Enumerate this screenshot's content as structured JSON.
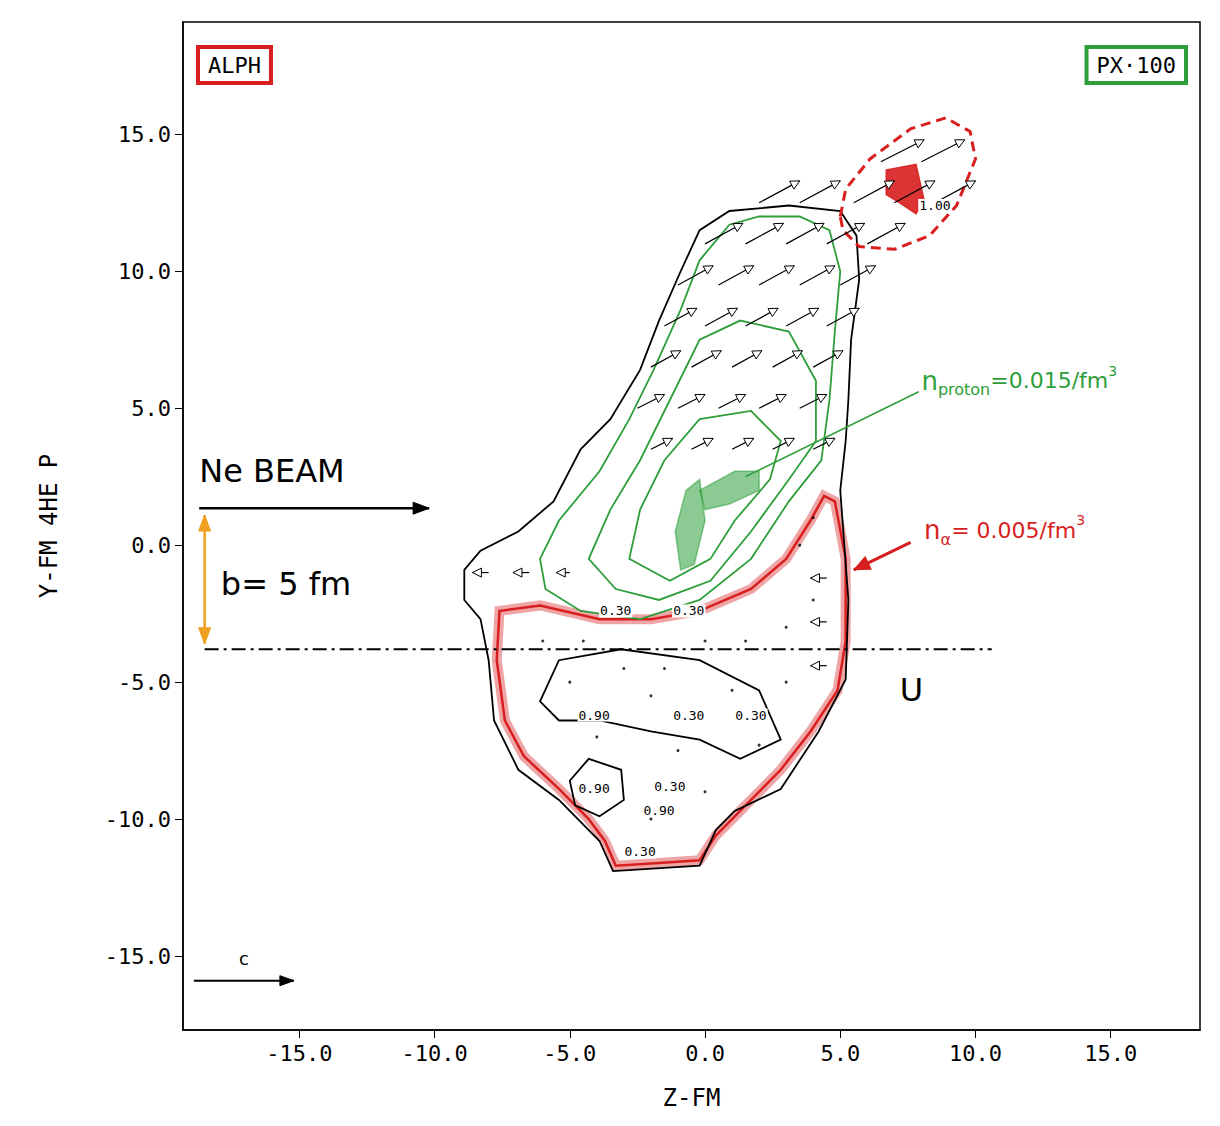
{
  "chart_data": {
    "type": "contour",
    "xlabel": "Z-FM",
    "ylabel": "Y-FM 4HE P",
    "xlim": [
      -19.3,
      18.3
    ],
    "ylim": [
      -17.7,
      19.1
    ],
    "xticks": [
      {
        "value": -15,
        "label": "-15.0"
      },
      {
        "value": -10,
        "label": "-10.0"
      },
      {
        "value": -5,
        "label": "-5.0"
      },
      {
        "value": 0,
        "label": "0.0"
      },
      {
        "value": 5,
        "label": "5.0"
      },
      {
        "value": 10,
        "label": "10.0"
      },
      {
        "value": 15,
        "label": "15.0"
      }
    ],
    "yticks": [
      {
        "value": -15,
        "label": "-15.0"
      },
      {
        "value": -10,
        "label": "-10.0"
      },
      {
        "value": -5,
        "label": "-5.0"
      },
      {
        "value": 0,
        "label": "0.0"
      },
      {
        "value": 5,
        "label": "5.0"
      },
      {
        "value": 10,
        "label": "10.0"
      },
      {
        "value": 15,
        "label": "15.0"
      }
    ],
    "grid": false,
    "boxes": [
      {
        "text": "ALPH",
        "color": "#d81e1e"
      },
      {
        "text": "PX·100",
        "color": "#2e9e3a"
      }
    ],
    "series": [
      {
        "type": "line",
        "color": "#d81e1e",
        "line_style": "hatched",
        "values": [
          [
            -7.6,
            -2.4
          ],
          [
            -6.1,
            -2.2
          ],
          [
            -3.9,
            -2.7
          ],
          [
            -2.0,
            -2.7
          ],
          [
            -0.2,
            -2.4
          ],
          [
            1.7,
            -1.6
          ],
          [
            3.0,
            -0.5
          ],
          [
            3.9,
            0.9
          ],
          [
            4.4,
            1.8
          ],
          [
            4.8,
            1.6
          ],
          [
            5.2,
            -0.5
          ],
          [
            5.2,
            -3.5
          ],
          [
            4.9,
            -5.3
          ],
          [
            3.9,
            -6.8
          ],
          [
            2.8,
            -8.2
          ],
          [
            1.3,
            -9.7
          ],
          [
            0.4,
            -10.6
          ],
          [
            -0.2,
            -11.5
          ],
          [
            -1.7,
            -11.6
          ],
          [
            -3.3,
            -11.7
          ],
          [
            -3.7,
            -10.8
          ],
          [
            -4.3,
            -10.0
          ],
          [
            -5.4,
            -8.9
          ],
          [
            -6.7,
            -7.7
          ],
          [
            -7.4,
            -6.4
          ],
          [
            -7.7,
            -4.2
          ]
        ]
      },
      {
        "type": "line",
        "color": "#000000",
        "line_style": "solid",
        "values": [
          [
            -8.9,
            -0.9
          ],
          [
            -8.3,
            -0.2
          ],
          [
            -6.9,
            0.5
          ],
          [
            -5.6,
            1.6
          ],
          [
            -4.6,
            3.5
          ],
          [
            -3.5,
            4.6
          ],
          [
            -2.4,
            6.4
          ],
          [
            -1.7,
            8.2
          ],
          [
            -0.9,
            10.0
          ],
          [
            -0.2,
            11.5
          ],
          [
            0.9,
            12.2
          ],
          [
            3.1,
            12.4
          ],
          [
            5.0,
            12.2
          ],
          [
            5.6,
            11.3
          ],
          [
            5.7,
            9.7
          ],
          [
            5.4,
            7.5
          ],
          [
            5.3,
            5.3
          ],
          [
            5.2,
            3.8
          ],
          [
            5.0,
            2.0
          ],
          [
            5.3,
            -2.0
          ],
          [
            5.2,
            -4.9
          ],
          [
            4.2,
            -6.8
          ],
          [
            2.8,
            -8.9
          ],
          [
            1.1,
            -9.7
          ],
          [
            0.4,
            -10.4
          ],
          [
            -0.2,
            -11.7
          ],
          [
            -3.4,
            -11.9
          ],
          [
            -3.9,
            -10.8
          ],
          [
            -5.4,
            -9.3
          ],
          [
            -6.9,
            -8.2
          ],
          [
            -7.8,
            -6.4
          ],
          [
            -8.0,
            -4.2
          ],
          [
            -8.3,
            -2.7
          ],
          [
            -8.9,
            -2.0
          ]
        ]
      },
      {
        "type": "line",
        "color": "#d81e1e",
        "line_style": "dashed",
        "values": [
          [
            5.0,
            12.0
          ],
          [
            5.2,
            13.0
          ],
          [
            6.1,
            14.1
          ],
          [
            7.6,
            15.2
          ],
          [
            8.9,
            15.6
          ],
          [
            9.8,
            15.1
          ],
          [
            10.0,
            14.1
          ],
          [
            9.3,
            12.4
          ],
          [
            8.3,
            11.3
          ],
          [
            7.0,
            10.8
          ],
          [
            5.7,
            10.9
          ],
          [
            5.1,
            11.5
          ]
        ]
      },
      {
        "type": "area",
        "color": "#d81e1e",
        "line_style": "solid",
        "values": [
          [
            6.7,
            13.7
          ],
          [
            7.8,
            13.9
          ],
          [
            8.1,
            12.6
          ],
          [
            7.8,
            12.1
          ],
          [
            7.2,
            12.5
          ],
          [
            6.7,
            12.8
          ]
        ]
      },
      {
        "type": "line",
        "color": "#2e9e3a",
        "line_style": "solid",
        "values": [
          [
            -6.1,
            -0.5
          ],
          [
            -5.4,
            0.9
          ],
          [
            -3.9,
            2.7
          ],
          [
            -2.8,
            4.6
          ],
          [
            -1.9,
            6.4
          ],
          [
            -0.9,
            8.6
          ],
          [
            -0.2,
            10.4
          ],
          [
            0.9,
            11.7
          ],
          [
            2.0,
            12.0
          ],
          [
            3.5,
            12.0
          ],
          [
            4.6,
            11.5
          ],
          [
            5.0,
            10.0
          ],
          [
            4.8,
            7.8
          ],
          [
            4.6,
            5.3
          ],
          [
            4.3,
            3.1
          ],
          [
            3.1,
            1.6
          ],
          [
            1.7,
            -0.5
          ],
          [
            -0.2,
            -2.0
          ],
          [
            -2.4,
            -2.7
          ],
          [
            -4.6,
            -2.4
          ],
          [
            -5.9,
            -1.6
          ]
        ]
      },
      {
        "type": "line",
        "color": "#2e9e3a",
        "line_style": "solid",
        "values": [
          [
            -4.3,
            -0.5
          ],
          [
            -3.5,
            1.3
          ],
          [
            -2.4,
            3.1
          ],
          [
            -1.3,
            5.3
          ],
          [
            -0.2,
            7.5
          ],
          [
            1.3,
            8.2
          ],
          [
            3.1,
            7.8
          ],
          [
            4.1,
            6.0
          ],
          [
            4.1,
            3.8
          ],
          [
            3.1,
            2.4
          ],
          [
            1.7,
            0.5
          ],
          [
            0.2,
            -1.3
          ],
          [
            -1.7,
            -2.0
          ],
          [
            -3.3,
            -1.6
          ]
        ]
      },
      {
        "type": "line",
        "color": "#2e9e3a",
        "line_style": "solid",
        "values": [
          [
            -2.8,
            -0.5
          ],
          [
            -2.4,
            1.3
          ],
          [
            -1.5,
            3.1
          ],
          [
            -0.2,
            4.6
          ],
          [
            1.7,
            4.9
          ],
          [
            2.8,
            3.8
          ],
          [
            2.4,
            2.4
          ],
          [
            1.1,
            0.9
          ],
          [
            0.2,
            -0.5
          ],
          [
            -1.3,
            -1.3
          ]
        ]
      },
      {
        "type": "area",
        "color": "#2e9e3a",
        "line_style": "hatched",
        "values": [
          [
            -0.2,
            2.0
          ],
          [
            1.1,
            2.7
          ],
          [
            2.0,
            2.7
          ],
          [
            2.0,
            2.0
          ],
          [
            0.9,
            1.5
          ],
          [
            0.0,
            1.3
          ]
        ]
      },
      {
        "type": "area",
        "color": "#2e9e3a",
        "line_style": "hatched",
        "values": [
          [
            -0.9,
            -0.9
          ],
          [
            -1.1,
            0.5
          ],
          [
            -0.7,
            2.0
          ],
          [
            -0.2,
            2.4
          ],
          [
            0.0,
            0.9
          ],
          [
            -0.4,
            -0.7
          ]
        ]
      },
      {
        "type": "line",
        "color": "#000000",
        "line_style": "solid",
        "values": [
          [
            -6.1,
            -5.7
          ],
          [
            -5.4,
            -4.2
          ],
          [
            -3.1,
            -3.8
          ],
          [
            -0.2,
            -4.2
          ],
          [
            2.0,
            -5.3
          ],
          [
            2.8,
            -7.1
          ],
          [
            1.3,
            -7.8
          ],
          [
            -0.2,
            -7.1
          ],
          [
            -2.0,
            -6.8
          ],
          [
            -3.9,
            -6.4
          ],
          [
            -5.4,
            -6.4
          ]
        ]
      },
      {
        "type": "line",
        "color": "#000000",
        "line_style": "solid",
        "values": [
          [
            -5.0,
            -8.6
          ],
          [
            -4.3,
            -7.8
          ],
          [
            -3.1,
            -8.2
          ],
          [
            -3.0,
            -9.3
          ],
          [
            -3.9,
            -9.9
          ],
          [
            -4.8,
            -9.5
          ]
        ]
      }
    ],
    "arrows": [
      [
        -2,
        3.5,
        0.8,
        0.4
      ],
      [
        -0.5,
        3.5,
        0.8,
        0.4
      ],
      [
        1,
        3.5,
        0.8,
        0.4
      ],
      [
        2.5,
        3.5,
        0.8,
        0.4
      ],
      [
        4,
        3.5,
        0.8,
        0.4
      ],
      [
        -2.5,
        5,
        1.0,
        0.5
      ],
      [
        -1,
        5,
        1.0,
        0.5
      ],
      [
        0.5,
        5,
        1.0,
        0.5
      ],
      [
        2,
        5,
        1.0,
        0.5
      ],
      [
        3.5,
        5,
        1.0,
        0.5
      ],
      [
        -2,
        6.5,
        1.1,
        0.6
      ],
      [
        -0.5,
        6.5,
        1.1,
        0.6
      ],
      [
        1,
        6.5,
        1.1,
        0.6
      ],
      [
        2.5,
        6.5,
        1.1,
        0.6
      ],
      [
        4,
        6.5,
        1.1,
        0.6
      ],
      [
        -1.5,
        8,
        1.2,
        0.65
      ],
      [
        0,
        8,
        1.2,
        0.65
      ],
      [
        1.5,
        8,
        1.2,
        0.65
      ],
      [
        3,
        8,
        1.2,
        0.65
      ],
      [
        4.5,
        8,
        1.2,
        0.65
      ],
      [
        -1,
        9.5,
        1.3,
        0.7
      ],
      [
        0.5,
        9.5,
        1.3,
        0.7
      ],
      [
        2,
        9.5,
        1.3,
        0.7
      ],
      [
        3.5,
        9.5,
        1.3,
        0.7
      ],
      [
        5,
        9.5,
        1.3,
        0.7
      ],
      [
        0,
        11,
        1.4,
        0.75
      ],
      [
        1.5,
        11,
        1.4,
        0.75
      ],
      [
        3,
        11,
        1.4,
        0.75
      ],
      [
        4.5,
        11,
        1.4,
        0.75
      ],
      [
        6,
        11,
        1.4,
        0.75
      ],
      [
        2,
        12.5,
        1.5,
        0.8
      ],
      [
        3.5,
        12.5,
        1.5,
        0.8
      ],
      [
        5.5,
        12.5,
        1.5,
        0.8
      ],
      [
        7,
        12.5,
        1.5,
        0.8
      ],
      [
        8.5,
        12.5,
        1.5,
        0.8
      ],
      [
        6.5,
        14,
        1.6,
        0.8
      ],
      [
        8,
        14,
        1.6,
        0.8
      ],
      [
        -8,
        -1,
        -0.6,
        0
      ],
      [
        -6.5,
        -1,
        -0.6,
        0
      ],
      [
        -5,
        -1,
        -0.5,
        0
      ],
      [
        4.5,
        -1.2,
        -0.6,
        0
      ],
      [
        4.5,
        -2.8,
        -0.6,
        0
      ],
      [
        4.5,
        -4.4,
        -0.6,
        0
      ]
    ],
    "dots": [
      [
        -6,
        -3.5
      ],
      [
        -4.5,
        -3.5
      ],
      [
        -3,
        -4.5
      ],
      [
        -1.5,
        -4.5
      ],
      [
        0,
        -3.5
      ],
      [
        1.5,
        -3.5
      ],
      [
        3,
        -3
      ],
      [
        4,
        -2
      ],
      [
        3.5,
        0
      ],
      [
        4,
        1
      ],
      [
        -5,
        -5
      ],
      [
        -2,
        -5.5
      ],
      [
        1,
        -5.3
      ],
      [
        3,
        -5
      ],
      [
        -4,
        -7
      ],
      [
        -1,
        -7.5
      ],
      [
        2,
        -7.3
      ],
      [
        -2,
        -10
      ],
      [
        0,
        -9
      ]
    ],
    "markers": [
      {
        "from": [
          -18.7,
          1.35
        ],
        "to": [
          -10.2,
          1.35
        ],
        "color": "#000000",
        "line_style": "solid",
        "marker": "arrow"
      },
      {
        "from": [
          -18.5,
          1.1
        ],
        "to": [
          -18.5,
          -3.6
        ],
        "color": "#f0a020",
        "line_style": "solid",
        "marker": "double_arrow"
      },
      {
        "from": [
          -18.5,
          -3.8
        ],
        "to": [
          10.6,
          -3.8
        ],
        "color": "#000000",
        "line_style": "dashdot",
        "marker": "none"
      }
    ],
    "scale_arrow": {
      "label": "c",
      "from": [
        -18.9,
        -15.9
      ],
      "to": [
        -15.2,
        -15.9
      ]
    },
    "annotations": [
      {
        "text": "Ne BEAM",
        "x": -18.7,
        "y": 2.7,
        "color": "#000000"
      },
      {
        "text": "b= 5 fm",
        "x": -17.9,
        "y": -1.4,
        "color": "#000000"
      },
      {
        "text": "U",
        "x": 7.2,
        "y": -5.3,
        "color": "#000000"
      }
    ],
    "density_labels": [
      {
        "symbol": "n",
        "subscript": "proton",
        "text": "=0.015/fm",
        "superscript": "3",
        "color": "#2e9e3a",
        "x": 8.0,
        "y": 6.0,
        "pointer": [
          [
            7.9,
            5.6
          ],
          [
            1.5,
            2.5
          ]
        ],
        "marker": "none"
      },
      {
        "symbol": "n",
        "subscript": "α",
        "text": "= 0.005/fm",
        "superscript": "3",
        "color": "#d81e1e",
        "x": 8.1,
        "y": 0.55,
        "pointer": [
          [
            7.6,
            0.1
          ],
          [
            5.5,
            -0.9
          ]
        ],
        "marker": "arrow"
      }
    ],
    "contour_labels": [
      {
        "text": "0.30",
        "x": -3.3,
        "y": -2.4
      },
      {
        "text": "0.30",
        "x": -0.6,
        "y": -2.4
      },
      {
        "text": "0.90",
        "x": -4.1,
        "y": -6.2
      },
      {
        "text": "0.30",
        "x": -0.6,
        "y": -6.2
      },
      {
        "text": "0.30",
        "x": 1.7,
        "y": -6.2
      },
      {
        "text": "0.90",
        "x": -4.1,
        "y": -8.9
      },
      {
        "text": "0.30",
        "x": -1.3,
        "y": -8.8
      },
      {
        "text": "0.90",
        "x": -1.7,
        "y": -9.7
      },
      {
        "text": "0.30",
        "x": -2.4,
        "y": -11.2
      },
      {
        "text": "1.00",
        "x": 8.5,
        "y": 12.4
      }
    ]
  }
}
